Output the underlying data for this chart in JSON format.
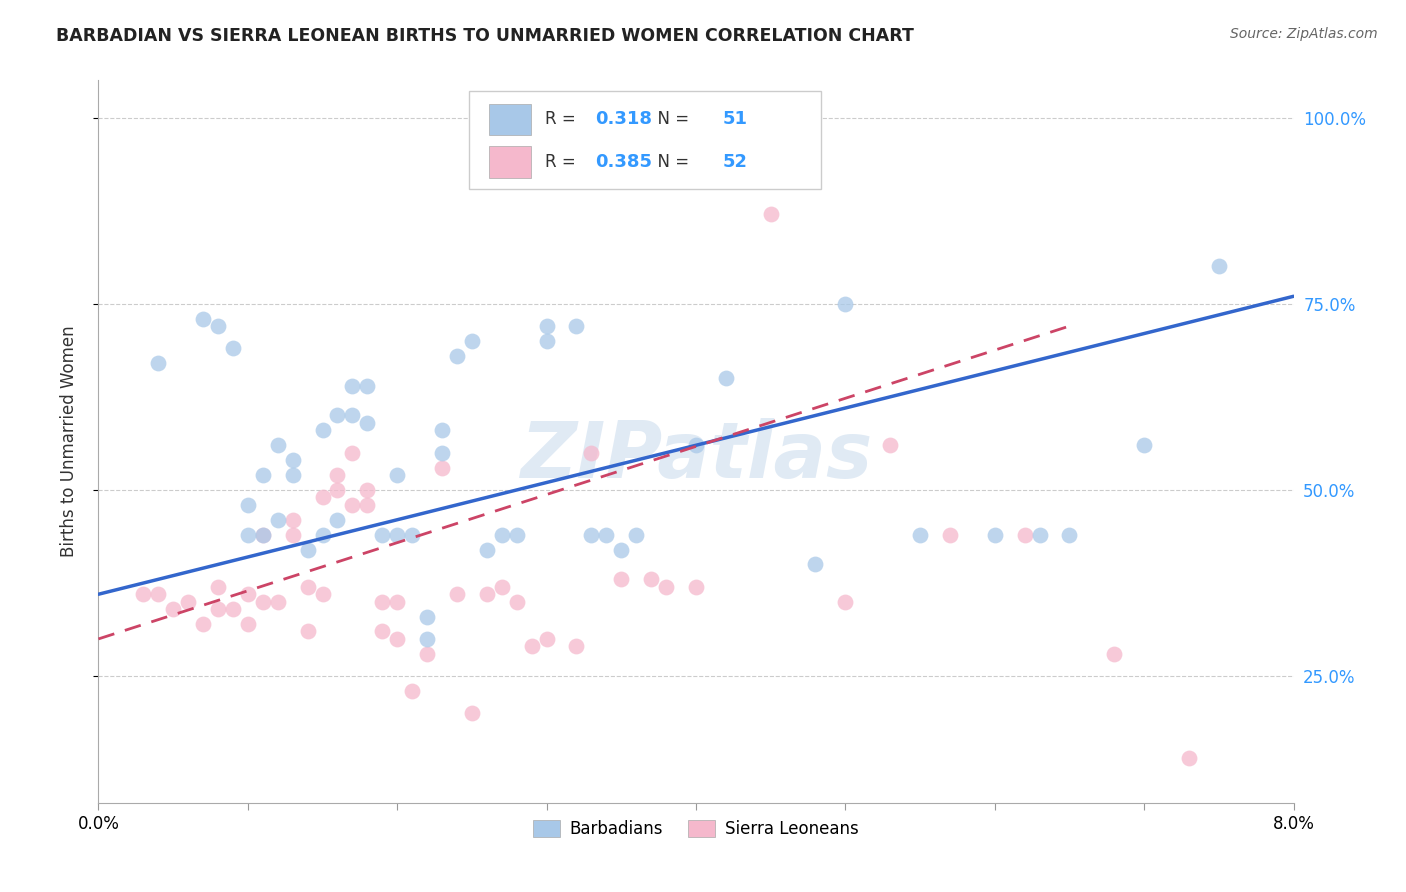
{
  "title": "BARBADIAN VS SIERRA LEONEAN BIRTHS TO UNMARRIED WOMEN CORRELATION CHART",
  "source": "Source: ZipAtlas.com",
  "ylabel": "Births to Unmarried Women",
  "ytick_values": [
    0.25,
    0.5,
    0.75,
    1.0
  ],
  "xmin": 0.0,
  "xmax": 0.08,
  "ymin": 0.08,
  "ymax": 1.05,
  "legend_label1_R": "0.318",
  "legend_label1_N": "51",
  "legend_label2_R": "0.385",
  "legend_label2_N": "52",
  "blue_color": "#a8c8e8",
  "pink_color": "#f5b8cc",
  "blue_line_color": "#3366cc",
  "pink_line_color": "#cc4466",
  "watermark": "ZIPatlas",
  "barbadians_label": "Barbadians",
  "sierra_leoneans_label": "Sierra Leoneans",
  "blue_scatter_x": [
    0.004,
    0.007,
    0.008,
    0.009,
    0.01,
    0.01,
    0.011,
    0.011,
    0.012,
    0.012,
    0.013,
    0.013,
    0.014,
    0.015,
    0.015,
    0.016,
    0.016,
    0.017,
    0.017,
    0.018,
    0.018,
    0.019,
    0.02,
    0.02,
    0.021,
    0.022,
    0.022,
    0.023,
    0.023,
    0.024,
    0.025,
    0.026,
    0.027,
    0.028,
    0.03,
    0.03,
    0.032,
    0.033,
    0.034,
    0.035,
    0.036,
    0.04,
    0.042,
    0.048,
    0.05,
    0.055,
    0.06,
    0.063,
    0.065,
    0.07,
    0.075
  ],
  "blue_scatter_y": [
    0.67,
    0.73,
    0.72,
    0.69,
    0.44,
    0.48,
    0.44,
    0.52,
    0.46,
    0.56,
    0.52,
    0.54,
    0.42,
    0.44,
    0.58,
    0.46,
    0.6,
    0.6,
    0.64,
    0.59,
    0.64,
    0.44,
    0.44,
    0.52,
    0.44,
    0.3,
    0.33,
    0.55,
    0.58,
    0.68,
    0.7,
    0.42,
    0.44,
    0.44,
    0.7,
    0.72,
    0.72,
    0.44,
    0.44,
    0.42,
    0.44,
    0.56,
    0.65,
    0.4,
    0.75,
    0.44,
    0.44,
    0.44,
    0.44,
    0.56,
    0.8
  ],
  "pink_scatter_x": [
    0.003,
    0.004,
    0.005,
    0.006,
    0.007,
    0.008,
    0.008,
    0.009,
    0.01,
    0.01,
    0.011,
    0.011,
    0.012,
    0.013,
    0.013,
    0.014,
    0.014,
    0.015,
    0.015,
    0.016,
    0.016,
    0.017,
    0.017,
    0.018,
    0.018,
    0.019,
    0.019,
    0.02,
    0.02,
    0.021,
    0.022,
    0.023,
    0.024,
    0.025,
    0.026,
    0.027,
    0.028,
    0.029,
    0.03,
    0.032,
    0.033,
    0.035,
    0.037,
    0.038,
    0.04,
    0.045,
    0.05,
    0.053,
    0.057,
    0.062,
    0.068,
    0.073
  ],
  "pink_scatter_y": [
    0.36,
    0.36,
    0.34,
    0.35,
    0.32,
    0.34,
    0.37,
    0.34,
    0.32,
    0.36,
    0.35,
    0.44,
    0.35,
    0.44,
    0.46,
    0.31,
    0.37,
    0.36,
    0.49,
    0.5,
    0.52,
    0.48,
    0.55,
    0.48,
    0.5,
    0.31,
    0.35,
    0.3,
    0.35,
    0.23,
    0.28,
    0.53,
    0.36,
    0.2,
    0.36,
    0.37,
    0.35,
    0.29,
    0.3,
    0.29,
    0.55,
    0.38,
    0.38,
    0.37,
    0.37,
    0.87,
    0.35,
    0.56,
    0.44,
    0.44,
    0.28,
    0.14
  ],
  "blue_line_x0": 0.0,
  "blue_line_x1": 0.08,
  "blue_line_y0": 0.36,
  "blue_line_y1": 0.76,
  "pink_line_x0": 0.0,
  "pink_line_x1": 0.065,
  "pink_line_y0": 0.3,
  "pink_line_y1": 0.72
}
